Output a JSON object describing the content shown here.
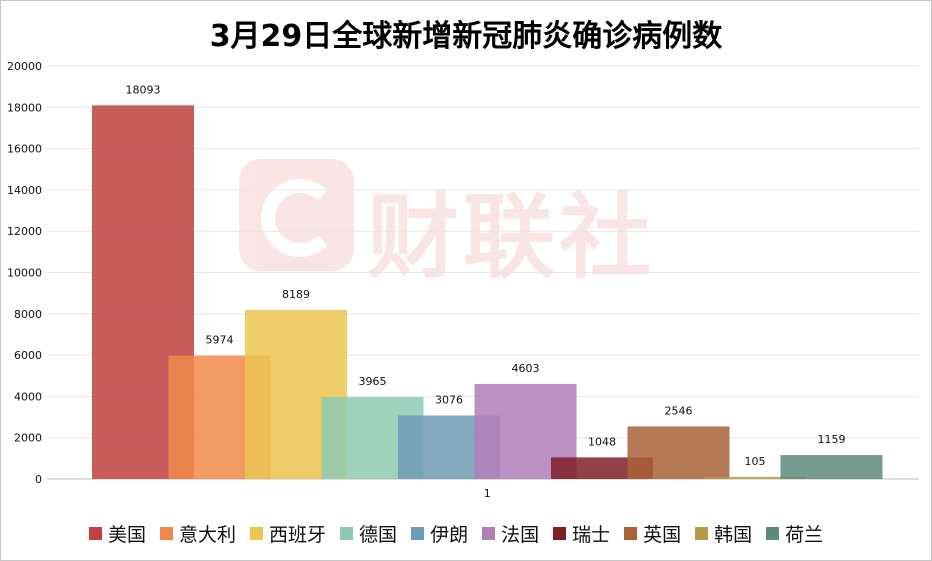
{
  "chart_data": {
    "type": "bar",
    "title": "3月29日全球新增新冠肺炎确诊病例数",
    "categories": [
      "1"
    ],
    "ylim": [
      0,
      20000
    ],
    "yticks": [
      0,
      2000,
      4000,
      6000,
      8000,
      10000,
      12000,
      14000,
      16000,
      18000,
      20000
    ],
    "grid": true,
    "legend_position": "bottom",
    "series": [
      {
        "name": "美国",
        "values": [
          18093
        ],
        "color": "#c0413f"
      },
      {
        "name": "意大利",
        "values": [
          5974
        ],
        "color": "#f08a4a"
      },
      {
        "name": "西班牙",
        "values": [
          8189
        ],
        "color": "#ecc450"
      },
      {
        "name": "德国",
        "values": [
          3965
        ],
        "color": "#8ec9b2"
      },
      {
        "name": "伊朗",
        "values": [
          3076
        ],
        "color": "#6f9bb5"
      },
      {
        "name": "法国",
        "values": [
          4603
        ],
        "color": "#b17eb8"
      },
      {
        "name": "瑞士",
        "values": [
          1048
        ],
        "color": "#7e2028"
      },
      {
        "name": "英国",
        "values": [
          2546
        ],
        "color": "#a8623a"
      },
      {
        "name": "韩国",
        "values": [
          105
        ],
        "color": "#b69a4a"
      },
      {
        "name": "荷兰",
        "values": [
          1159
        ],
        "color": "#5f8a7a"
      }
    ]
  },
  "watermark": {
    "text": "财联社",
    "icon": "cls-logo-icon"
  }
}
